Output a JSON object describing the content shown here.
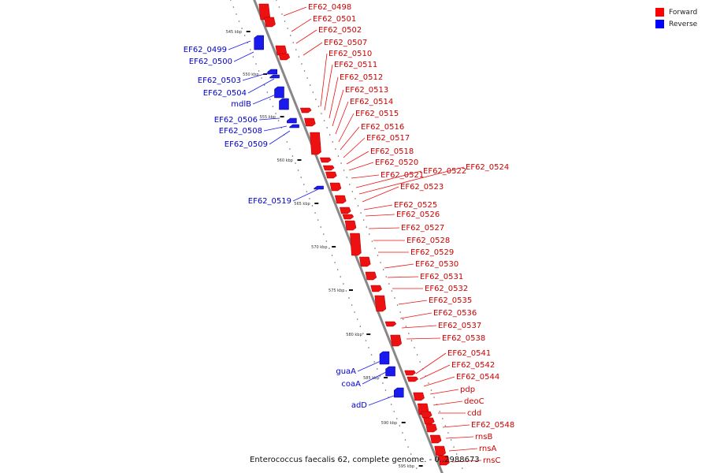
{
  "caption": "Enterococcus faecalis 62, complete genome. - 0..2988673",
  "legend": {
    "items": [
      {
        "label": "Forward",
        "color": "#ff0000"
      },
      {
        "label": "Reverse",
        "color": "#0000ff"
      }
    ]
  },
  "colors": {
    "forward": "#ee1111",
    "reverse": "#1a1aee",
    "backbone": "#888888"
  },
  "ticks": [
    "545 kbp",
    "550 kbp",
    "555 kbp",
    "560 kbp",
    "565 kbp",
    "570 kbp",
    "575 kbp",
    "580 kbp",
    "585 kbp",
    "590 kbp",
    "595 kbp"
  ],
  "forward_genes": [
    "EF62_0498",
    "EF62_0501",
    "EF62_0502",
    "EF62_0507",
    "EF62_0510",
    "EF62_0511",
    "EF62_0512",
    "EF62_0513",
    "EF62_0514",
    "EF62_0515",
    "EF62_0516",
    "EF62_0517",
    "EF62_0518",
    "EF62_0520",
    "EF62_0521",
    "EF62_0522",
    "EF62_0524",
    "EF62_0523",
    "EF62_0525",
    "EF62_0526",
    "EF62_0527",
    "EF62_0528",
    "EF62_0529",
    "EF62_0530",
    "EF62_0531",
    "EF62_0532",
    "EF62_0535",
    "EF62_0536",
    "EF62_0537",
    "EF62_0538",
    "EF62_0541",
    "EF62_0542",
    "EF62_0544",
    "pdp",
    "deoC",
    "cdd",
    "EF62_0548",
    "rnsB",
    "rnsA",
    "rnsC"
  ],
  "reverse_genes": [
    "EF62_0499",
    "EF62_0500",
    "EF62_0503",
    "EF62_0504",
    "mdlB",
    "EF62_0506",
    "EF62_0508",
    "EF62_0509",
    "EF62_0519",
    "guaA",
    "coaA",
    "adD"
  ]
}
